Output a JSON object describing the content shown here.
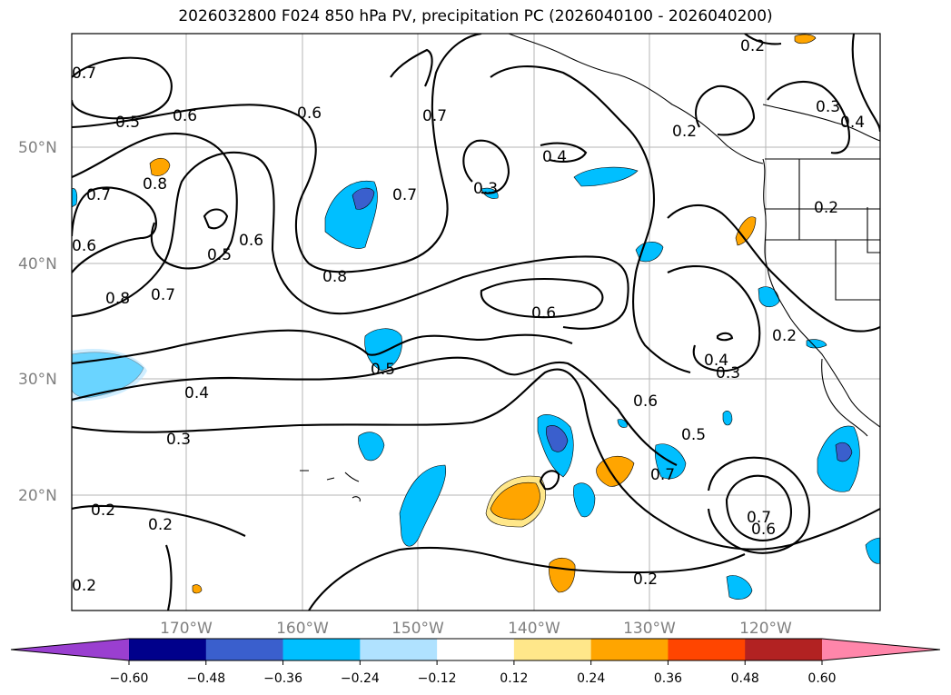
{
  "title": "2026032800 F024 850 hPa PV, precipitation PC (2026040100 - 2026040200)",
  "axes": {
    "lat_labels": [
      "50°N",
      "40°N",
      "30°N",
      "20°N"
    ],
    "lon_labels": [
      "170°W",
      "160°W",
      "150°W",
      "140°W",
      "130°W",
      "120°W"
    ]
  },
  "contour_labels": [
    "0.2",
    "0.3",
    "0.4",
    "0.5",
    "0.6",
    "0.7",
    "0.8",
    "0.5",
    "0.6",
    "0.6",
    "0.7",
    "0.8",
    "0.7",
    "0.7",
    "0.4",
    "0.3",
    "0.6",
    "0.4",
    "0.3",
    "0.2",
    "0.2",
    "0.2",
    "0.3",
    "0.4",
    "0.2",
    "0.6",
    "0.5",
    "0.7",
    "0.7",
    "0.6",
    "0.2",
    "0.2",
    "0.2",
    "0.5",
    "0.8",
    "0.6",
    "0.7"
  ],
  "colorbar": {
    "ticks": [
      "−0.60",
      "−0.48",
      "−0.36",
      "−0.24",
      "−0.12",
      "0.12",
      "0.24",
      "0.36",
      "0.48",
      "0.60"
    ],
    "colors": [
      "#9a3fd0",
      "#00008b",
      "#3a5fcd",
      "#00bfff",
      "#b0e2ff",
      "#ffffff",
      "#ffe78a",
      "#ffa500",
      "#ff4500",
      "#b22222",
      "#ff86aa"
    ]
  }
}
